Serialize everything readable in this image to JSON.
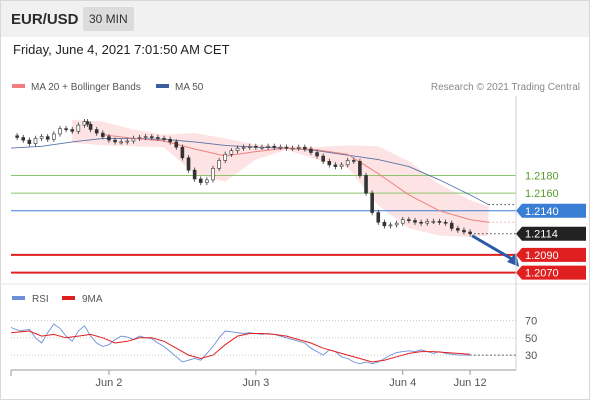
{
  "header": {
    "pair": "EUR/USD",
    "timeframe": "30 MIN"
  },
  "timestamp": "Friday, June 4, 2021 7:01:50 AM CET",
  "colors": {
    "ma20_bb": "#f08080",
    "bb_fill": "#fde0e0",
    "ma50": "#3a5f9a",
    "resistance": "#8cc46e",
    "pivot": "#3a7fd5",
    "support": "#e02020",
    "current": "#222222",
    "arrow": "#2a5aa8",
    "rsi": "#6d8fd8",
    "rsi_ma": "#e02020"
  },
  "chart_data": [
    {
      "type": "line",
      "title": "EUR/USD 30 MIN",
      "legend": [
        {
          "name": "MA 20 + Bollinger Bands",
          "color": "#f08080"
        },
        {
          "name": "MA 50",
          "color": "#3a5f9a"
        }
      ],
      "copyright": "Research © 2021 Trading Central",
      "ylim": [
        1.2065,
        1.227
      ],
      "x_ticks": [
        {
          "label": "Jun 2",
          "t": 32
        },
        {
          "label": "Jun 3",
          "t": 80
        },
        {
          "label": "Jun 4",
          "t": 128
        },
        {
          "label": "Jun 12",
          "t": 150
        }
      ],
      "xlim": [
        0,
        165
      ],
      "price_series": [
        [
          0,
          1.2225
        ],
        [
          2,
          1.2223
        ],
        [
          4,
          1.222
        ],
        [
          6,
          1.2216
        ],
        [
          8,
          1.2222
        ],
        [
          10,
          1.2224
        ],
        [
          12,
          1.2221
        ],
        [
          14,
          1.2227
        ],
        [
          16,
          1.2233
        ],
        [
          18,
          1.2232
        ],
        [
          20,
          1.223
        ],
        [
          22,
          1.2237
        ],
        [
          24,
          1.2241
        ],
        [
          25,
          1.2238
        ],
        [
          26,
          1.2232
        ],
        [
          28,
          1.2228
        ],
        [
          30,
          1.2224
        ],
        [
          32,
          1.222
        ],
        [
          34,
          1.2218
        ],
        [
          36,
          1.2218
        ],
        [
          38,
          1.2219
        ],
        [
          40,
          1.2222
        ],
        [
          42,
          1.2223
        ],
        [
          44,
          1.2224
        ],
        [
          46,
          1.2223
        ],
        [
          48,
          1.2222
        ],
        [
          50,
          1.2221
        ],
        [
          52,
          1.2218
        ],
        [
          54,
          1.2212
        ],
        [
          56,
          1.22
        ],
        [
          58,
          1.2186
        ],
        [
          60,
          1.2176
        ],
        [
          62,
          1.2172
        ],
        [
          64,
          1.2175
        ],
        [
          66,
          1.2188
        ],
        [
          68,
          1.2197
        ],
        [
          70,
          1.2204
        ],
        [
          72,
          1.2208
        ],
        [
          74,
          1.2211
        ],
        [
          76,
          1.2212
        ],
        [
          78,
          1.2213
        ],
        [
          80,
          1.2212
        ],
        [
          82,
          1.2212
        ],
        [
          84,
          1.2213
        ],
        [
          86,
          1.2212
        ],
        [
          88,
          1.2212
        ],
        [
          90,
          1.2211
        ],
        [
          92,
          1.2211
        ],
        [
          94,
          1.2212
        ],
        [
          96,
          1.221
        ],
        [
          98,
          1.2206
        ],
        [
          100,
          1.2202
        ],
        [
          102,
          1.2196
        ],
        [
          104,
          1.2192
        ],
        [
          106,
          1.219
        ],
        [
          108,
          1.2192
        ],
        [
          110,
          1.2197
        ],
        [
          112,
          1.2196
        ],
        [
          114,
          1.218
        ],
        [
          116,
          1.216
        ],
        [
          118,
          1.2138
        ],
        [
          120,
          1.2127
        ],
        [
          122,
          1.2123
        ],
        [
          124,
          1.2124
        ],
        [
          126,
          1.2126
        ],
        [
          128,
          1.213
        ],
        [
          130,
          1.2129
        ],
        [
          132,
          1.2127
        ],
        [
          134,
          1.2126
        ],
        [
          136,
          1.2128
        ],
        [
          138,
          1.2128
        ],
        [
          140,
          1.2127
        ],
        [
          142,
          1.2126
        ],
        [
          144,
          1.212
        ],
        [
          146,
          1.2118
        ],
        [
          148,
          1.2116
        ],
        [
          150,
          1.2114
        ]
      ],
      "ma50_series": [
        [
          0,
          1.2211
        ],
        [
          10,
          1.2213
        ],
        [
          20,
          1.2218
        ],
        [
          30,
          1.2222
        ],
        [
          40,
          1.2222
        ],
        [
          50,
          1.2221
        ],
        [
          60,
          1.2218
        ],
        [
          70,
          1.2214
        ],
        [
          80,
          1.2212
        ],
        [
          90,
          1.2211
        ],
        [
          100,
          1.2208
        ],
        [
          110,
          1.2203
        ],
        [
          120,
          1.2198
        ],
        [
          130,
          1.219
        ],
        [
          140,
          1.2175
        ],
        [
          150,
          1.2158
        ],
        [
          156,
          1.2147
        ]
      ],
      "ma20_series": [
        [
          30,
          1.2226
        ],
        [
          40,
          1.2222
        ],
        [
          50,
          1.2219
        ],
        [
          60,
          1.221
        ],
        [
          70,
          1.2202
        ],
        [
          80,
          1.2207
        ],
        [
          90,
          1.2211
        ],
        [
          100,
          1.2209
        ],
        [
          110,
          1.2204
        ],
        [
          120,
          1.2182
        ],
        [
          130,
          1.2158
        ],
        [
          140,
          1.214
        ],
        [
          150,
          1.213
        ],
        [
          156,
          1.2127
        ]
      ],
      "bb_upper": [
        [
          20,
          1.2243
        ],
        [
          30,
          1.2241
        ],
        [
          40,
          1.2232
        ],
        [
          50,
          1.2226
        ],
        [
          60,
          1.2228
        ],
        [
          70,
          1.2222
        ],
        [
          80,
          1.2215
        ],
        [
          90,
          1.2213
        ],
        [
          100,
          1.2212
        ],
        [
          110,
          1.2214
        ],
        [
          120,
          1.2213
        ],
        [
          130,
          1.2196
        ],
        [
          140,
          1.217
        ],
        [
          150,
          1.2152
        ],
        [
          156,
          1.2145
        ]
      ],
      "bb_lower": [
        [
          20,
          1.2217
        ],
        [
          30,
          1.2214
        ],
        [
          40,
          1.2213
        ],
        [
          50,
          1.2212
        ],
        [
          60,
          1.2182
        ],
        [
          70,
          1.2173
        ],
        [
          80,
          1.2198
        ],
        [
          90,
          1.2209
        ],
        [
          100,
          1.2198
        ],
        [
          110,
          1.2189
        ],
        [
          120,
          1.2146
        ],
        [
          130,
          1.212
        ],
        [
          140,
          1.2112
        ],
        [
          150,
          1.211
        ],
        [
          156,
          1.2112
        ]
      ],
      "levels": [
        {
          "label": "1.2180",
          "value": 1.218,
          "kind": "resistance"
        },
        {
          "label": "1.2160",
          "value": 1.216,
          "kind": "resistance"
        },
        {
          "label": "1.2140",
          "value": 1.214,
          "kind": "pivot"
        },
        {
          "label": "1.2114",
          "value": 1.2114,
          "kind": "current"
        },
        {
          "label": "1.2090",
          "value": 1.209,
          "kind": "support"
        },
        {
          "label": "1.2070",
          "value": 1.207,
          "kind": "support"
        }
      ],
      "arrow": {
        "from": [
          150,
          1.2114
        ],
        "to": [
          166,
          1.2072
        ]
      }
    },
    {
      "type": "line",
      "legend": [
        {
          "name": "RSI",
          "color": "#6d8fd8"
        },
        {
          "name": "9MA",
          "color": "#e02020"
        }
      ],
      "ylim": [
        15,
        80
      ],
      "y_ticks": [
        70,
        50,
        30
      ],
      "rsi_series": [
        [
          0,
          62
        ],
        [
          3,
          58
        ],
        [
          6,
          60
        ],
        [
          8,
          50
        ],
        [
          10,
          44
        ],
        [
          12,
          56
        ],
        [
          14,
          66
        ],
        [
          16,
          61
        ],
        [
          18,
          52
        ],
        [
          20,
          46
        ],
        [
          22,
          58
        ],
        [
          24,
          64
        ],
        [
          26,
          52
        ],
        [
          28,
          44
        ],
        [
          30,
          40
        ],
        [
          32,
          42
        ],
        [
          34,
          48
        ],
        [
          36,
          52
        ],
        [
          38,
          51
        ],
        [
          40,
          48
        ],
        [
          42,
          52
        ],
        [
          44,
          50
        ],
        [
          46,
          49
        ],
        [
          48,
          44
        ],
        [
          50,
          40
        ],
        [
          52,
          34
        ],
        [
          54,
          28
        ],
        [
          56,
          22
        ],
        [
          58,
          24
        ],
        [
          60,
          26
        ],
        [
          62,
          24
        ],
        [
          64,
          32
        ],
        [
          66,
          40
        ],
        [
          68,
          50
        ],
        [
          70,
          58
        ],
        [
          72,
          57
        ],
        [
          74,
          56
        ],
        [
          76,
          55
        ],
        [
          78,
          56
        ],
        [
          80,
          55
        ],
        [
          82,
          54
        ],
        [
          84,
          55
        ],
        [
          86,
          54
        ],
        [
          88,
          52
        ],
        [
          90,
          50
        ],
        [
          92,
          48
        ],
        [
          94,
          46
        ],
        [
          96,
          44
        ],
        [
          98,
          38
        ],
        [
          100,
          34
        ],
        [
          102,
          30
        ],
        [
          104,
          36
        ],
        [
          106,
          34
        ],
        [
          108,
          28
        ],
        [
          110,
          26
        ],
        [
          112,
          22
        ],
        [
          114,
          20
        ],
        [
          116,
          22
        ],
        [
          118,
          20
        ],
        [
          120,
          22
        ],
        [
          122,
          26
        ],
        [
          124,
          30
        ],
        [
          126,
          33
        ],
        [
          128,
          34
        ],
        [
          130,
          35
        ],
        [
          132,
          34
        ],
        [
          134,
          36
        ],
        [
          136,
          34
        ],
        [
          138,
          32
        ],
        [
          140,
          34
        ],
        [
          142,
          32
        ],
        [
          144,
          31
        ],
        [
          146,
          30
        ],
        [
          148,
          30
        ],
        [
          150,
          30
        ]
      ],
      "rsi_ma_series": [
        [
          0,
          56
        ],
        [
          6,
          58
        ],
        [
          10,
          52
        ],
        [
          14,
          54
        ],
        [
          18,
          50
        ],
        [
          22,
          52
        ],
        [
          26,
          54
        ],
        [
          30,
          50
        ],
        [
          34,
          44
        ],
        [
          38,
          46
        ],
        [
          42,
          50
        ],
        [
          46,
          50
        ],
        [
          50,
          46
        ],
        [
          54,
          38
        ],
        [
          58,
          30
        ],
        [
          62,
          26
        ],
        [
          66,
          30
        ],
        [
          70,
          42
        ],
        [
          74,
          52
        ],
        [
          78,
          55
        ],
        [
          82,
          55
        ],
        [
          86,
          54
        ],
        [
          90,
          52
        ],
        [
          94,
          48
        ],
        [
          98,
          44
        ],
        [
          102,
          38
        ],
        [
          106,
          34
        ],
        [
          110,
          30
        ],
        [
          114,
          26
        ],
        [
          118,
          22
        ],
        [
          122,
          24
        ],
        [
          126,
          28
        ],
        [
          130,
          32
        ],
        [
          134,
          34
        ],
        [
          138,
          34
        ],
        [
          142,
          33
        ],
        [
          146,
          32
        ],
        [
          150,
          31
        ]
      ]
    }
  ]
}
